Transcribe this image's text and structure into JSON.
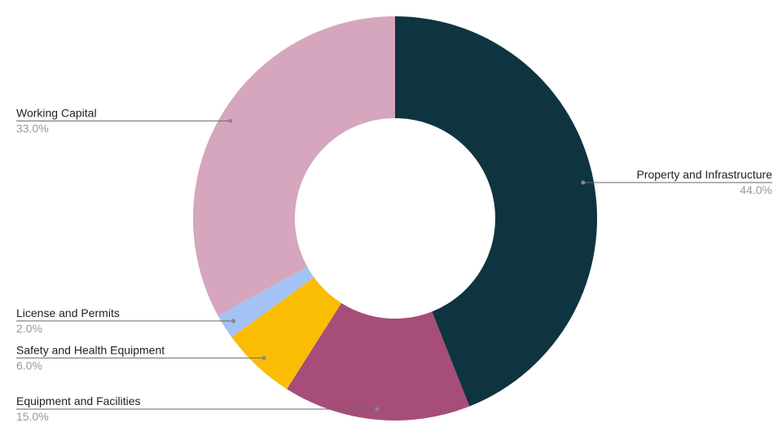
{
  "chart_data": {
    "type": "donut",
    "categories": [
      "Property and Infrastructure",
      "Equipment and Facilities",
      "Safety and Health Equipment",
      "License and Permits",
      "Working Capital"
    ],
    "values": [
      44,
      15,
      6,
      2,
      33
    ],
    "value_labels": [
      "44.0%",
      "15.0%",
      "6.0%",
      "2.0%",
      "33.0%"
    ],
    "colors": [
      "#0e3440",
      "#a64d79",
      "#fbbc04",
      "#a4c2f4",
      "#d5a6bd"
    ]
  }
}
